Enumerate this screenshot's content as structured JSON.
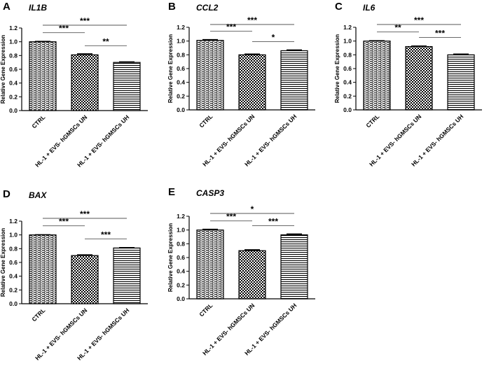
{
  "chart_data": [
    {
      "type": "bar",
      "panel": "A",
      "title": "IL1B",
      "ylabel": "Relative Gene Expression",
      "xlabel": "",
      "ylim": [
        0,
        1.2
      ],
      "yticks": [
        "0.0",
        "0.2",
        "0.4",
        "0.6",
        "0.8",
        "1.0",
        "1.2"
      ],
      "categories": [
        "CTRL",
        "HL-1 + EVS- hGMSCs UN",
        "HL-1 + EVS- hGMSCs UH"
      ],
      "values": [
        1.0,
        0.81,
        0.7
      ],
      "errors": [
        0.005,
        0.015,
        0.008
      ],
      "significance": [
        {
          "from": 0,
          "to": 1,
          "label": "***"
        },
        {
          "from": 1,
          "to": 2,
          "label": "**"
        },
        {
          "from": 0,
          "to": 2,
          "label": "***"
        }
      ]
    },
    {
      "type": "bar",
      "panel": "B",
      "title": "CCL2",
      "ylabel": "Relative Gene Expression",
      "xlabel": "",
      "ylim": [
        0,
        1.2
      ],
      "yticks": [
        "0.0",
        "0.2",
        "0.4",
        "0.6",
        "0.8",
        "1.0",
        "1.2"
      ],
      "categories": [
        "CTRL",
        "HL-1 + EVS- hGMSCs UN",
        "HL-1 + EVS- hGMSCs UH"
      ],
      "values": [
        1.01,
        0.8,
        0.86
      ],
      "errors": [
        0.01,
        0.01,
        0.01
      ],
      "significance": [
        {
          "from": 0,
          "to": 1,
          "label": "***"
        },
        {
          "from": 1,
          "to": 2,
          "label": "*"
        },
        {
          "from": 0,
          "to": 2,
          "label": "***"
        }
      ]
    },
    {
      "type": "bar",
      "panel": "C",
      "title": "IL6",
      "ylabel": "Relative Gene Expression",
      "xlabel": "",
      "ylim": [
        0,
        1.2
      ],
      "yticks": [
        "0.0",
        "0.2",
        "0.4",
        "0.6",
        "0.8",
        "1.0",
        "1.2"
      ],
      "categories": [
        "CTRL",
        "HL-1 + EVS- hGMSCs UN",
        "HL-1 + EVS- hGMSCs UH"
      ],
      "values": [
        1.0,
        0.92,
        0.8
      ],
      "errors": [
        0.005,
        0.008,
        0.01
      ],
      "significance": [
        {
          "from": 0,
          "to": 1,
          "label": "**"
        },
        {
          "from": 1,
          "to": 2,
          "label": "***"
        },
        {
          "from": 0,
          "to": 2,
          "label": "***"
        }
      ]
    },
    {
      "type": "bar",
      "panel": "D",
      "title": "BAX",
      "ylabel": "Relative Gene Expression",
      "xlabel": "",
      "ylim": [
        0,
        1.2
      ],
      "yticks": [
        "0.0",
        "0.2",
        "0.4",
        "0.6",
        "0.8",
        "1.0",
        "1.2"
      ],
      "categories": [
        "CTRL",
        "HL-1 + EVS- hGMSCs UN",
        "HL-1 + EVS- hGMSCs UH"
      ],
      "values": [
        1.0,
        0.7,
        0.81
      ],
      "errors": [
        0.003,
        0.01,
        0.005
      ],
      "significance": [
        {
          "from": 0,
          "to": 1,
          "label": "***"
        },
        {
          "from": 1,
          "to": 2,
          "label": "***"
        },
        {
          "from": 0,
          "to": 2,
          "label": "***"
        }
      ]
    },
    {
      "type": "bar",
      "panel": "E",
      "title": "CASP3",
      "ylabel": "Relative Gene Expression",
      "xlabel": "",
      "ylim": [
        0,
        1.2
      ],
      "yticks": [
        "0.0",
        "0.2",
        "0.4",
        "0.6",
        "0.8",
        "1.0",
        "1.2"
      ],
      "categories": [
        "CTRL",
        "HL-1 + EVS- hGMSCs UN",
        "HL-1 + EVS- hGMSCs UH"
      ],
      "values": [
        1.0,
        0.7,
        0.93
      ],
      "errors": [
        0.01,
        0.012,
        0.012
      ],
      "significance": [
        {
          "from": 0,
          "to": 1,
          "label": "***"
        },
        {
          "from": 1,
          "to": 2,
          "label": "***"
        },
        {
          "from": 0,
          "to": 2,
          "label": "*"
        }
      ]
    }
  ]
}
